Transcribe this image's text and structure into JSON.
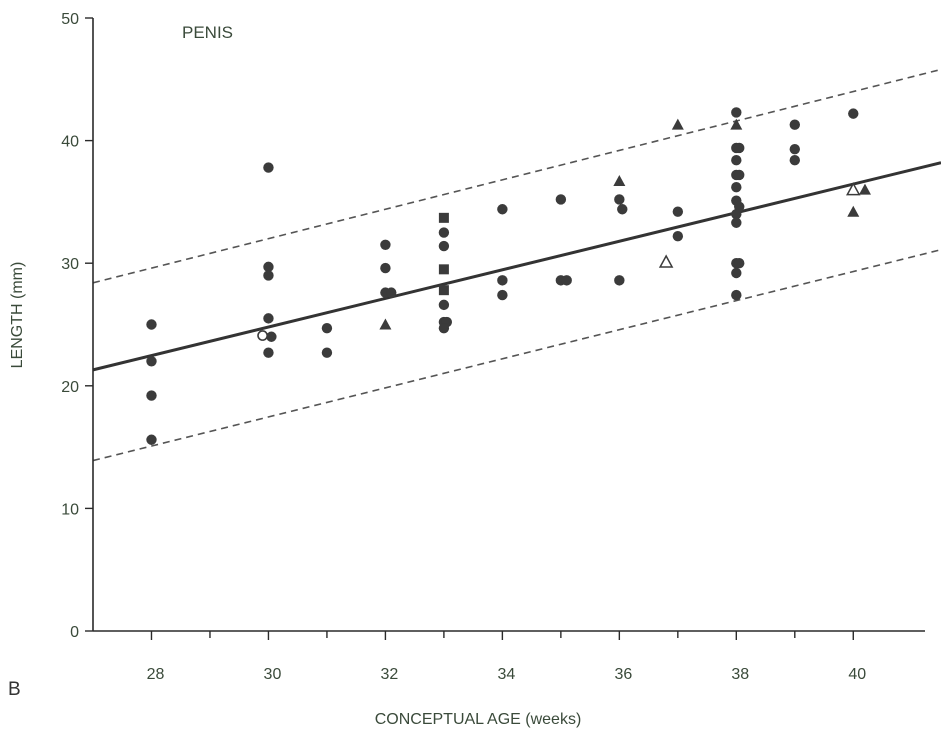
{
  "chart_data": {
    "type": "scatter",
    "title": "PENIS",
    "panel_label": "B",
    "xlabel": "CONCEPTUAL AGE (weeks)",
    "ylabel": "LENGTH (mm)",
    "xlim": [
      27,
      41.5
    ],
    "ylim": [
      0,
      50
    ],
    "x_ticks": [
      28,
      30,
      32,
      34,
      36,
      38,
      40
    ],
    "x_minor_ticks": [
      29,
      31,
      33,
      35,
      37,
      39
    ],
    "y_ticks": [
      0,
      10,
      20,
      30,
      40,
      50
    ],
    "grid": false,
    "legend": "none",
    "regression_line": {
      "x": [
        27,
        41.5
      ],
      "y": [
        21.3,
        38.2
      ]
    },
    "upper_band": {
      "x": [
        27,
        41.5
      ],
      "y": [
        28.4,
        45.8
      ]
    },
    "lower_band": {
      "x": [
        27,
        41.5
      ],
      "y": [
        13.9,
        31.1
      ]
    },
    "series": [
      {
        "marker": "filled-circle",
        "points": [
          [
            28,
            25
          ],
          [
            28,
            22
          ],
          [
            28,
            19.2
          ],
          [
            28,
            15.6
          ],
          [
            30,
            37.8
          ],
          [
            30,
            29.7
          ],
          [
            30,
            29
          ],
          [
            30,
            25.5
          ],
          [
            30.05,
            24
          ],
          [
            30,
            22.7
          ],
          [
            31,
            24.7
          ],
          [
            31,
            22.7
          ],
          [
            32,
            31.5
          ],
          [
            32,
            29.6
          ],
          [
            32,
            27.6
          ],
          [
            32.1,
            27.6
          ],
          [
            33,
            32.5
          ],
          [
            33,
            31.4
          ],
          [
            33,
            26.6
          ],
          [
            33,
            25.2
          ],
          [
            33.05,
            25.2
          ],
          [
            33,
            24.7
          ],
          [
            34,
            34.4
          ],
          [
            34,
            28.6
          ],
          [
            34,
            27.4
          ],
          [
            35,
            35.2
          ],
          [
            35,
            28.6
          ],
          [
            35.1,
            28.6
          ],
          [
            36,
            35.2
          ],
          [
            36.05,
            34.4
          ],
          [
            36,
            28.6
          ],
          [
            37,
            34.2
          ],
          [
            37,
            32.2
          ],
          [
            38,
            42.3
          ],
          [
            38,
            39.4
          ],
          [
            38.05,
            39.4
          ],
          [
            38,
            38.4
          ],
          [
            38,
            37.2
          ],
          [
            38.05,
            37.2
          ],
          [
            38,
            36.2
          ],
          [
            38,
            35.1
          ],
          [
            38.05,
            34.6
          ],
          [
            38,
            34
          ],
          [
            38,
            33.3
          ],
          [
            38,
            30
          ],
          [
            38.05,
            30
          ],
          [
            38,
            29.2
          ],
          [
            38,
            27.4
          ],
          [
            39,
            41.3
          ],
          [
            39,
            39.3
          ],
          [
            39,
            38.4
          ],
          [
            40,
            42.2
          ]
        ]
      },
      {
        "marker": "open-circle",
        "points": [
          [
            29.9,
            24.1
          ]
        ]
      },
      {
        "marker": "filled-square",
        "points": [
          [
            33,
            33.7
          ],
          [
            33,
            29.5
          ],
          [
            33,
            27.8
          ]
        ]
      },
      {
        "marker": "filled-triangle",
        "points": [
          [
            32,
            25
          ],
          [
            36,
            36.7
          ],
          [
            37,
            41.3
          ],
          [
            38,
            41.3
          ],
          [
            40,
            34.2
          ],
          [
            40.2,
            36
          ]
        ]
      },
      {
        "marker": "open-triangle",
        "points": [
          [
            36.8,
            30.1
          ],
          [
            40,
            36
          ]
        ]
      }
    ]
  }
}
